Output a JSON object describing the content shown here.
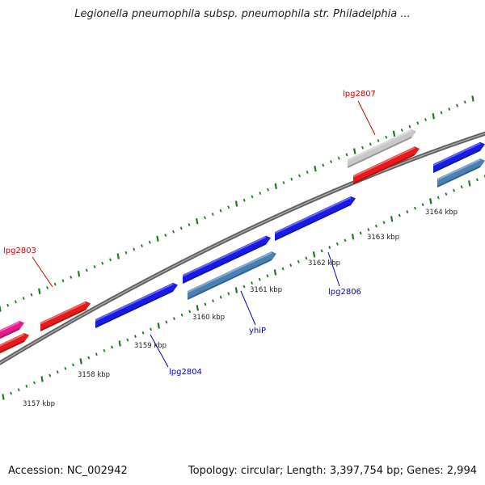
{
  "title": "Legionella pneumophila subsp. pneumophila str. Philadelphia ...",
  "footer": {
    "accession": "Accession: NC_002942",
    "topology": "Topology: circular; Length: 3,397,754 bp; Genes: 2,994"
  },
  "map": {
    "ruler_labels": [
      "3157 kbp",
      "3158 kbp",
      "3159 kbp",
      "3160 kbp",
      "3161 kbp",
      "3162 kbp",
      "3163 kbp",
      "3164 kbp"
    ],
    "colors": {
      "backbone": "#7a7a7a",
      "tick": "#1f7a1f",
      "cds_forward": "#1a1ae6",
      "cds_forward_alt": "#4a7fb5",
      "cds_reverse": "#e61a1a",
      "cds_pink": "#e61a8c",
      "cds_grey": "#c8c8c8",
      "label_forward": "#0000cc",
      "label_reverse": "#cc0000"
    },
    "gene_labels": [
      {
        "text": "lpg2803",
        "strand": "reverse"
      },
      {
        "text": "lpg2807",
        "strand": "reverse"
      },
      {
        "text": "lpg2804",
        "strand": "forward"
      },
      {
        "text": "yhiP",
        "strand": "forward"
      },
      {
        "text": "lpg2806",
        "strand": "forward"
      }
    ],
    "features": [
      {
        "name": "feature-pink-left",
        "color": "cds_pink"
      },
      {
        "name": "feature-red-left-low",
        "color": "cds_reverse"
      },
      {
        "name": "feature-red-lpg2803",
        "color": "cds_reverse"
      },
      {
        "name": "feature-blue-lpg2804",
        "color": "cds_forward"
      },
      {
        "name": "feature-blue-upper-1",
        "color": "cds_forward"
      },
      {
        "name": "feature-steel-yhiP",
        "color": "cds_forward_alt"
      },
      {
        "name": "feature-blue-upper-2",
        "color": "cds_forward"
      },
      {
        "name": "feature-grey-lpg2807",
        "color": "cds_grey"
      },
      {
        "name": "feature-red-lpg2807",
        "color": "cds_reverse"
      },
      {
        "name": "feature-blue-right",
        "color": "cds_forward"
      },
      {
        "name": "feature-steel-right",
        "color": "cds_forward_alt"
      }
    ]
  }
}
